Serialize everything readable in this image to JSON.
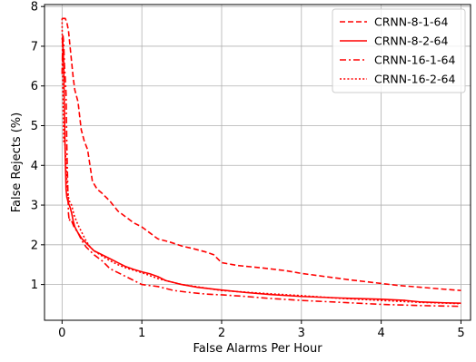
{
  "chart_data": {
    "type": "line",
    "title": "",
    "xlabel": "False Alarms Per Hour",
    "ylabel": "False Rejects (%)",
    "xlim": [
      -0.22,
      5.12
    ],
    "ylim": [
      0.1,
      8.05
    ],
    "xticks": [
      0,
      1,
      2,
      3,
      4,
      5
    ],
    "yticks": [
      1,
      2,
      3,
      4,
      5,
      6,
      7,
      8
    ],
    "grid": true,
    "legend_position": "top-right",
    "colors": {
      "series": "#ff0000",
      "grid": "#b0b0b0",
      "axis": "#000000"
    },
    "series": [
      {
        "name": "CRNN-8-1-64",
        "dash": "dashed",
        "x": [
          0.0,
          0.02,
          0.04,
          0.06,
          0.08,
          0.1,
          0.12,
          0.14,
          0.16,
          0.2,
          0.24,
          0.28,
          0.32,
          0.38,
          0.44,
          0.5,
          0.6,
          0.7,
          0.8,
          0.9,
          1.0,
          1.1,
          1.2,
          1.35,
          1.5,
          1.65,
          1.8,
          1.9,
          2.0,
          2.2,
          2.5,
          2.8,
          3.0,
          3.3,
          3.6,
          3.9,
          4.2,
          4.5,
          4.8,
          5.0
        ],
        "y": [
          7.7,
          7.7,
          7.7,
          7.6,
          7.4,
          7.0,
          6.6,
          6.2,
          5.9,
          5.6,
          4.9,
          4.6,
          4.4,
          3.6,
          3.4,
          3.3,
          3.1,
          2.85,
          2.7,
          2.55,
          2.45,
          2.3,
          2.15,
          2.07,
          1.97,
          1.9,
          1.82,
          1.75,
          1.55,
          1.48,
          1.42,
          1.35,
          1.28,
          1.2,
          1.12,
          1.05,
          0.98,
          0.93,
          0.88,
          0.85
        ]
      },
      {
        "name": "CRNN-8-2-64",
        "dash": "solid",
        "x": [
          0.0,
          0.01,
          0.02,
          0.03,
          0.04,
          0.05,
          0.06,
          0.08,
          0.1,
          0.12,
          0.14,
          0.16,
          0.2,
          0.25,
          0.3,
          0.35,
          0.4,
          0.5,
          0.6,
          0.7,
          0.8,
          0.9,
          1.0,
          1.1,
          1.2,
          1.3,
          1.5,
          1.7,
          2.0,
          2.3,
          2.6,
          3.0,
          3.5,
          4.0,
          4.3,
          4.5,
          4.8,
          5.0
        ],
        "y": [
          7.2,
          7.1,
          6.6,
          5.3,
          4.2,
          3.4,
          3.2,
          3.05,
          2.95,
          2.8,
          2.6,
          2.45,
          2.3,
          2.15,
          2.05,
          1.95,
          1.85,
          1.75,
          1.65,
          1.55,
          1.45,
          1.38,
          1.32,
          1.27,
          1.2,
          1.1,
          1.0,
          0.93,
          0.86,
          0.8,
          0.75,
          0.7,
          0.66,
          0.63,
          0.6,
          0.56,
          0.54,
          0.53
        ]
      },
      {
        "name": "CRNN-16-1-64",
        "dash": "dashdot",
        "x": [
          0.0,
          0.01,
          0.02,
          0.03,
          0.04,
          0.05,
          0.06,
          0.07,
          0.08,
          0.09,
          0.1,
          0.12,
          0.15,
          0.2,
          0.25,
          0.3,
          0.35,
          0.4,
          0.5,
          0.6,
          0.7,
          0.8,
          0.9,
          1.0,
          1.2,
          1.4,
          1.6,
          1.8,
          2.0,
          2.3,
          2.6,
          3.0,
          3.5,
          4.0,
          4.5,
          5.0
        ],
        "y": [
          6.3,
          7.3,
          7.1,
          6.5,
          6.2,
          5.8,
          4.5,
          3.6,
          2.8,
          2.6,
          2.65,
          2.6,
          2.45,
          2.3,
          2.1,
          1.95,
          1.85,
          1.75,
          1.6,
          1.4,
          1.3,
          1.2,
          1.1,
          1.0,
          0.95,
          0.85,
          0.8,
          0.76,
          0.74,
          0.7,
          0.65,
          0.6,
          0.55,
          0.5,
          0.47,
          0.45
        ]
      },
      {
        "name": "CRNN-16-2-64",
        "dash": "dotted",
        "x": [
          0.0,
          0.01,
          0.02,
          0.03,
          0.04,
          0.05,
          0.06,
          0.08,
          0.1,
          0.12,
          0.15,
          0.2,
          0.25,
          0.3,
          0.35,
          0.4,
          0.5,
          0.6,
          0.7,
          0.8,
          0.9,
          1.0,
          1.2,
          1.5,
          2.0,
          2.5,
          3.0,
          3.5,
          4.0,
          4.5,
          5.0
        ],
        "y": [
          7.7,
          6.0,
          4.6,
          4.7,
          4.4,
          4.0,
          3.6,
          3.2,
          3.05,
          3.0,
          2.75,
          2.5,
          2.3,
          2.1,
          1.95,
          1.85,
          1.72,
          1.6,
          1.5,
          1.42,
          1.36,
          1.3,
          1.15,
          1.0,
          0.85,
          0.78,
          0.72,
          0.65,
          0.6,
          0.55,
          0.52
        ]
      }
    ]
  }
}
